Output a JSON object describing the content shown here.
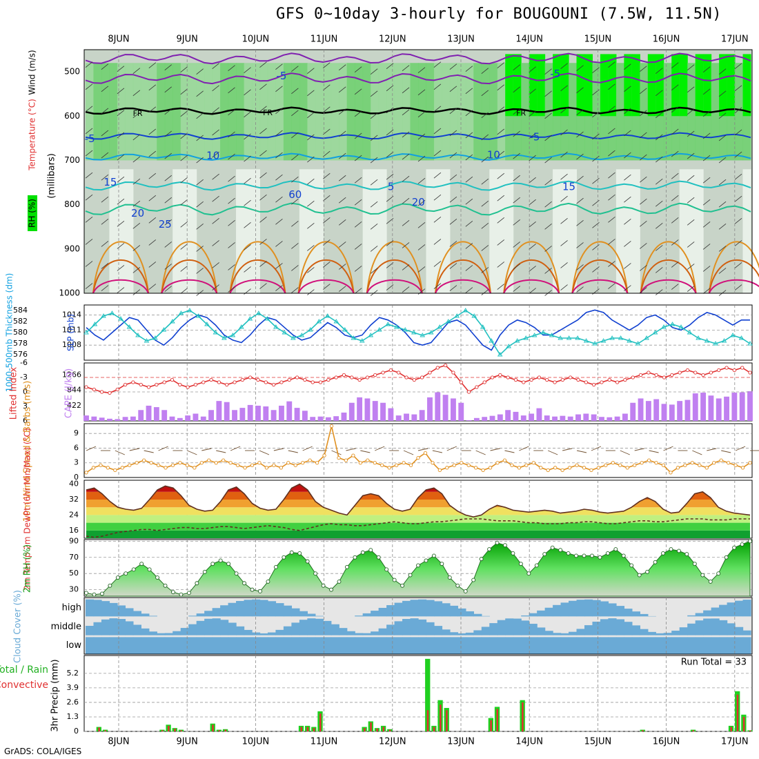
{
  "title": "GFS 0~10day 3-hourly for BOUGOUNI (7.5W, 11.5N)",
  "credit": "GrADS: COLA/IGES",
  "dates": [
    "8JUN",
    "9JUN",
    "10JUN",
    "11JUN",
    "12JUN",
    "13JUN",
    "14JUN",
    "15JUN",
    "16JUN",
    "17JUN"
  ],
  "colors": {
    "purple": "#8020b0",
    "black": "#000000",
    "blue": "#1040d0",
    "lightblue": "#10a0e0",
    "cyan": "#20c0c0",
    "teal": "#20c090",
    "orange": "#e09020",
    "darkorange": "#d06010",
    "magenta": "#d0107a",
    "green": "#00e000",
    "cape": "#c080f0",
    "red": "#e03030",
    "wind": "#e09020",
    "cloud": "#6aaad6"
  },
  "chart_data": [
    {
      "type": "heatmap",
      "panel": "cross-section",
      "ylabel": "(millibars)",
      "legend": [
        "RH (%)",
        "Temperature (°C)",
        "Wind (m/s)"
      ],
      "y_ticks": [
        500,
        600,
        700,
        800,
        900,
        1000
      ],
      "ylim": [
        1000,
        450
      ],
      "contour_labels": [
        {
          "text": "-5",
          "date_index": 2.6,
          "p": 510
        },
        {
          "text": "-5",
          "date_index": 6.6,
          "p": 505
        },
        {
          "text": "FR",
          "date_index": 0.5,
          "p": 595
        },
        {
          "text": "FR",
          "date_index": 2.4,
          "p": 593
        },
        {
          "text": "FR",
          "date_index": 6.1,
          "p": 594
        },
        {
          "text": "-5",
          "date_index": -0.2,
          "p": 652
        },
        {
          "text": "-5",
          "date_index": 6.3,
          "p": 648
        },
        {
          "text": "10",
          "date_index": 1.6,
          "p": 690
        },
        {
          "text": "10",
          "date_index": 5.7,
          "p": 688
        },
        {
          "text": "15",
          "date_index": 0.1,
          "p": 750
        },
        {
          "text": "5",
          "date_index": 4.2,
          "p": 760
        },
        {
          "text": "15",
          "date_index": 6.8,
          "p": 760
        },
        {
          "text": "20",
          "date_index": 0.5,
          "p": 820
        },
        {
          "text": "20",
          "date_index": 4.6,
          "p": 795
        },
        {
          "text": "25",
          "date_index": 0.9,
          "p": 845
        },
        {
          "text": "60",
          "date_index": 2.8,
          "p": 778
        }
      ]
    },
    {
      "type": "line",
      "panel": "thickness-slp",
      "ylabel_left": "1000-500mb Thickness (dm)",
      "ylabel_right": "SLP (mb)",
      "left_ticks": [
        576,
        578,
        580,
        582,
        584
      ],
      "right_ticks": [
        1008,
        1011,
        1014
      ],
      "series": [
        {
          "name": "SLP (mb)",
          "values": [
            1011.5,
            1010,
            1009,
            1010.5,
            1012,
            1013.5,
            1013,
            1011,
            1009,
            1008,
            1009.5,
            1011.5,
            1013,
            1014,
            1013.5,
            1012,
            1010,
            1009,
            1008.5,
            1010,
            1012,
            1013.5,
            1013,
            1011.5,
            1010,
            1009,
            1009.5,
            1011,
            1012.5,
            1011.5,
            1010,
            1009.5,
            1010,
            1012,
            1013.5,
            1013,
            1012,
            1010.5,
            1008.5,
            1008,
            1008.5,
            1010.5,
            1012.5,
            1013,
            1012,
            1010,
            1008,
            1007,
            1010,
            1012,
            1013,
            1012.5,
            1011.5,
            1010,
            1010,
            1011,
            1012,
            1013,
            1014.5,
            1015,
            1014.5,
            1013,
            1012,
            1011,
            1012,
            1013.5,
            1014,
            1013,
            1011.5,
            1011,
            1012,
            1013.5,
            1014.5,
            1014,
            1013,
            1012,
            1013,
            1013
          ]
        },
        {
          "name": "1000-500mb Thickness (dm)",
          "values": [
            580,
            581.5,
            583,
            583.5,
            582.5,
            581,
            579.5,
            578.5,
            579,
            580.5,
            582,
            583.5,
            584,
            583,
            581.5,
            580,
            579,
            579.5,
            581,
            582.5,
            583.5,
            582.5,
            581,
            580,
            579,
            579.5,
            580.5,
            582,
            583,
            582,
            580.5,
            579,
            578.5,
            579.5,
            580.5,
            581.5,
            581,
            580.5,
            580,
            579.5,
            580,
            581,
            582,
            583,
            584,
            583,
            581,
            578.5,
            576,
            577.5,
            578.5,
            579,
            579.5,
            580,
            579.5,
            579,
            579,
            579,
            578.5,
            578,
            578.5,
            579,
            579,
            578.5,
            578,
            579,
            580,
            581,
            581.5,
            581,
            580,
            579,
            578.5,
            578,
            578.5,
            579.5,
            579,
            578
          ]
        }
      ]
    },
    {
      "type": "bar",
      "panel": "cape-li",
      "ylabel_left": "Lifted Index",
      "ylabel_right": "CAPE (J/kg)",
      "left_ticks": [
        6,
        3,
        0,
        -3,
        -6
      ],
      "right_ticks": [
        422,
        844,
        1266
      ],
      "series": [
        {
          "name": "CAPE (J/kg)",
          "values": [
            150,
            120,
            90,
            60,
            50,
            110,
            120,
            300,
            420,
            380,
            300,
            120,
            80,
            150,
            200,
            120,
            300,
            550,
            520,
            300,
            360,
            440,
            420,
            400,
            300,
            420,
            540,
            360,
            280,
            110,
            120,
            100,
            130,
            230,
            500,
            650,
            620,
            550,
            500,
            350,
            150,
            200,
            180,
            300,
            650,
            790,
            720,
            620,
            500,
            20,
            80,
            110,
            140,
            180,
            300,
            250,
            150,
            200,
            350,
            150,
            120,
            140,
            120,
            180,
            200,
            180,
            110,
            100,
            120,
            200,
            500,
            620,
            550,
            600,
            470,
            450,
            550,
            580,
            760,
            780,
            700,
            620,
            670,
            780,
            790,
            820
          ]
        },
        {
          "name": "Lifted Index",
          "values": [
            -1,
            -0.5,
            0,
            0.2,
            -0.5,
            -1.5,
            -2,
            -1.5,
            -1,
            -1.5,
            -2,
            -2.5,
            -1.5,
            -1,
            -1.5,
            -2,
            -2.5,
            -2,
            -1.5,
            -2,
            -2.5,
            -3,
            -2.5,
            -2,
            -1.5,
            -2,
            -2.5,
            -3,
            -2.5,
            -2,
            -2,
            -2.5,
            -3,
            -3.5,
            -3,
            -2.5,
            -3,
            -3.5,
            -4,
            -4.5,
            -4,
            -3,
            -2.5,
            -3,
            -4,
            -5,
            -5.5,
            -4,
            -2,
            0,
            -1,
            -2,
            -3,
            -3.5,
            -3,
            -2.5,
            -2,
            -2.5,
            -3,
            -2.5,
            -2,
            -2.5,
            -3,
            -2.5,
            -2,
            -1.5,
            -2,
            -2.5,
            -2,
            -2.5,
            -3,
            -3.5,
            -4,
            -3.5,
            -3,
            -3.5,
            -4,
            -4.5,
            -4,
            -3.5,
            -4,
            -4.5,
            -5,
            -4.5,
            -5,
            -4
          ]
        }
      ]
    },
    {
      "type": "line",
      "panel": "wind10m",
      "ylabel": "10m Wind Speed & Barbs (m/s)",
      "y_ticks": [
        0,
        3,
        6,
        9
      ],
      "series": [
        {
          "name": "10m Wind Speed (m/s)",
          "values": [
            1,
            2,
            2.5,
            2,
            1.5,
            2,
            2.5,
            3,
            3.5,
            3,
            2.5,
            2,
            2.5,
            3,
            2.5,
            2,
            3,
            3.5,
            3,
            3.5,
            3,
            2.5,
            2,
            2.5,
            3,
            2,
            2.5,
            2,
            3,
            2.5,
            3,
            3.5,
            3,
            4.5,
            10.5,
            4,
            3.5,
            4.5,
            3,
            3.5,
            3,
            2.5,
            2,
            2.5,
            3,
            2.5,
            4,
            5,
            3,
            1.5,
            2,
            2.5,
            3,
            2.5,
            2,
            1.5,
            2,
            3,
            3.5,
            2.5,
            2,
            2.5,
            3,
            2,
            1.5,
            2,
            1.5,
            2,
            2.5,
            2,
            1.5,
            2,
            2.5,
            3,
            2.5,
            2,
            2.5,
            3,
            3.5,
            3,
            2.5,
            1,
            2,
            2.5,
            3,
            2.5,
            2,
            3,
            3.5,
            3,
            2.5,
            2,
            3
          ]
        }
      ]
    },
    {
      "type": "area",
      "panel": "temp2m",
      "ylabel": "2m Temp 2m DewPt (6hr Min/Max) (°C)",
      "y_ticks": [
        16,
        24,
        32,
        40
      ],
      "series": [
        {
          "name": "2m Temp (°C)",
          "values": [
            37,
            38,
            35,
            31,
            28,
            27,
            26.5,
            27.5,
            32,
            37,
            39,
            38,
            34,
            29,
            27,
            26,
            26.5,
            31,
            37,
            38.5,
            35,
            30,
            27.5,
            26.5,
            27,
            32,
            38,
            40,
            37,
            31,
            28,
            26.5,
            25,
            24,
            29,
            34,
            35,
            34,
            30,
            27,
            26,
            27,
            33,
            37,
            38,
            35,
            29,
            26,
            24,
            23,
            24,
            27,
            29,
            28,
            26.5,
            26,
            25.5,
            26,
            26.5,
            26,
            25,
            25.5,
            26,
            27,
            26.5,
            25.5,
            25,
            25.5,
            26,
            28,
            31,
            33,
            31,
            27,
            25,
            25.5,
            30,
            35,
            36,
            33,
            28,
            26,
            25,
            24.5,
            24
          ]
        },
        {
          "name": "2m DewPt (°C)",
          "values": [
            13,
            12.5,
            13,
            14,
            15,
            15.5,
            16,
            16.5,
            16.5,
            16,
            16.5,
            17,
            17.5,
            17.5,
            17,
            17,
            17.5,
            18,
            18,
            17.5,
            17,
            17.5,
            18,
            18.5,
            18,
            17.5,
            16.5,
            16,
            17,
            18,
            19,
            19.5,
            19,
            19,
            18.5,
            18.5,
            19,
            19.5,
            20,
            20.5,
            20,
            19.5,
            19.5,
            20,
            20.5,
            20.5,
            21,
            21.5,
            22,
            22,
            22,
            21.5,
            21,
            21,
            21,
            20.5,
            20,
            20,
            19.5,
            19.5,
            19.5,
            20,
            20,
            20.5,
            20.5,
            20,
            19.5,
            19.5,
            20,
            20.5,
            21,
            21,
            20.5,
            20.5,
            21,
            21.5,
            22,
            22,
            22,
            21.5,
            21.5,
            21.5,
            22,
            22,
            22
          ]
        }
      ]
    },
    {
      "type": "area",
      "panel": "rh2m",
      "ylabel": "2m RH (%)",
      "y_ticks": [
        30,
        50,
        70,
        90
      ],
      "series": [
        {
          "name": "2m RH (%)",
          "values": [
            26,
            24,
            25,
            35,
            45,
            50,
            55,
            62,
            55,
            45,
            35,
            27,
            24,
            26,
            38,
            52,
            62,
            66,
            62,
            50,
            38,
            30,
            28,
            40,
            58,
            70,
            76,
            75,
            65,
            50,
            35,
            30,
            40,
            58,
            70,
            76,
            79,
            70,
            55,
            42,
            35,
            48,
            60,
            66,
            72,
            62,
            45,
            35,
            28,
            42,
            68,
            80,
            88,
            85,
            75,
            62,
            50,
            60,
            74,
            82,
            79,
            75,
            72,
            72,
            72,
            70,
            75,
            80,
            72,
            60,
            48,
            52,
            64,
            75,
            80,
            78,
            74,
            62,
            48,
            40,
            50,
            70,
            82,
            86,
            90
          ]
        }
      ]
    },
    {
      "type": "bar",
      "panel": "cloud",
      "ylabel": "Cloud Cover (%)",
      "categories": [
        "high",
        "middle",
        "low"
      ]
    },
    {
      "type": "bar",
      "panel": "precip",
      "ylabel": "3hr Precip (mm)",
      "legend": [
        "Total / Rain",
        "Convective"
      ],
      "y_ticks": [
        0,
        1.3,
        2.6,
        3.9,
        5.2
      ],
      "annotation": "Run Total = 33",
      "series": [
        {
          "name": "Total / Rain",
          "values": [
            0,
            0,
            0.4,
            0.15,
            0,
            0,
            0,
            0,
            0,
            0,
            0,
            0,
            0.15,
            0.6,
            0.3,
            0.15,
            0,
            0,
            0,
            0,
            0.7,
            0.15,
            0.2,
            0,
            0,
            0,
            0,
            0,
            0,
            0,
            0,
            0,
            0,
            0,
            0.5,
            0.5,
            0.4,
            1.8,
            0,
            0,
            0,
            0,
            0,
            0,
            0.4,
            0.9,
            0.3,
            0.5,
            0.2,
            0,
            0,
            0,
            0,
            0,
            6.5,
            0.5,
            2.8,
            2.1,
            0,
            0,
            0,
            0,
            0,
            0,
            1.2,
            2.2,
            0,
            0,
            0,
            2.8,
            0,
            0,
            0,
            0,
            0,
            0,
            0,
            0,
            0,
            0,
            0,
            0,
            0,
            0,
            0,
            0,
            0,
            0,
            0.15,
            0,
            0,
            0,
            0,
            0,
            0,
            0,
            0.15,
            0,
            0,
            0,
            0,
            0,
            0.5,
            3.6,
            1.5,
            0.1
          ]
        },
        {
          "name": "Convective",
          "values": [
            0,
            0,
            0.35,
            0.1,
            0,
            0,
            0,
            0,
            0,
            0,
            0,
            0,
            0.1,
            0.5,
            0.25,
            0.1,
            0,
            0,
            0,
            0,
            0.6,
            0.1,
            0.15,
            0,
            0,
            0,
            0,
            0,
            0,
            0,
            0,
            0,
            0,
            0,
            0.4,
            0.4,
            0.3,
            1.6,
            0,
            0,
            0,
            0,
            0,
            0,
            0.3,
            0.8,
            0.25,
            0.4,
            0.15,
            0,
            0,
            0,
            0,
            0,
            1.9,
            0.4,
            2.4,
            1.9,
            0,
            0,
            0,
            0,
            0,
            0,
            1.0,
            2.0,
            0,
            0,
            0,
            2.6,
            0,
            0,
            0,
            0,
            0,
            0,
            0,
            0,
            0,
            0,
            0,
            0,
            0,
            0,
            0,
            0,
            0,
            0,
            0.1,
            0,
            0,
            0,
            0,
            0,
            0,
            0,
            0.1,
            0,
            0,
            0,
            0,
            0,
            0.4,
            3.3,
            1.3,
            0.08
          ]
        }
      ]
    }
  ]
}
